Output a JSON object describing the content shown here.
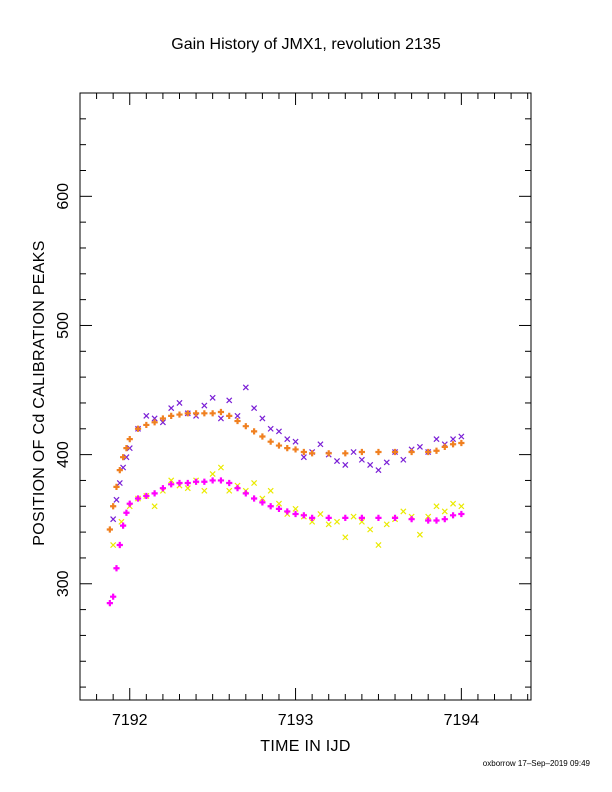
{
  "chart_data": {
    "type": "scatter",
    "title": "Gain History of JMX1, revolution 2135",
    "xlabel": "TIME IN IJD",
    "ylabel": "POSITION OF Cd CALIBRATION PEAKS",
    "xlim": [
      7191.7,
      7194.42
    ],
    "ylim": [
      210,
      680
    ],
    "x_ticks": [
      7192,
      7193,
      7194
    ],
    "x_tick_labels": [
      "7192",
      "7193",
      "7194"
    ],
    "y_ticks": [
      300,
      400,
      500,
      600
    ],
    "y_tick_labels": [
      "300",
      "400",
      "500",
      "600"
    ],
    "grid": false,
    "legend": "none",
    "series": [
      {
        "color": "#7a1fd6",
        "marker": "x",
        "x": [
          7191.9,
          7191.92,
          7191.94,
          7191.96,
          7191.98,
          7192.0,
          7192.05,
          7192.1,
          7192.15,
          7192.2,
          7192.25,
          7192.3,
          7192.35,
          7192.4,
          7192.45,
          7192.5,
          7192.55,
          7192.6,
          7192.65,
          7192.7,
          7192.75,
          7192.8,
          7192.85,
          7192.9,
          7192.95,
          7193.0,
          7193.05,
          7193.1,
          7193.15,
          7193.2,
          7193.25,
          7193.3,
          7193.35,
          7193.4,
          7193.45,
          7193.5,
          7193.55,
          7193.6,
          7193.65,
          7193.7,
          7193.75,
          7193.8,
          7193.85,
          7193.9,
          7193.95,
          7194.0
        ],
        "y": [
          350,
          365,
          378,
          390,
          398,
          405,
          420,
          430,
          428,
          425,
          436,
          440,
          432,
          430,
          438,
          444,
          428,
          442,
          430,
          452,
          436,
          428,
          420,
          418,
          412,
          410,
          398,
          402,
          408,
          400,
          395,
          392,
          402,
          396,
          392,
          388,
          394,
          402,
          396,
          404,
          406,
          402,
          412,
          408,
          412,
          414
        ]
      },
      {
        "color": "#f08020",
        "marker": "+",
        "x": [
          7191.88,
          7191.9,
          7191.92,
          7191.94,
          7191.96,
          7191.98,
          7192.0,
          7192.05,
          7192.1,
          7192.15,
          7192.2,
          7192.25,
          7192.3,
          7192.35,
          7192.4,
          7192.45,
          7192.5,
          7192.55,
          7192.6,
          7192.65,
          7192.7,
          7192.75,
          7192.8,
          7192.85,
          7192.9,
          7192.95,
          7193.0,
          7193.05,
          7193.1,
          7193.2,
          7193.3,
          7193.4,
          7193.5,
          7193.6,
          7193.7,
          7193.8,
          7193.85,
          7193.9,
          7193.95,
          7194.0
        ],
        "y": [
          342,
          360,
          375,
          388,
          398,
          405,
          412,
          420,
          423,
          425,
          428,
          430,
          431,
          432,
          432,
          432,
          432,
          433,
          430,
          426,
          422,
          418,
          414,
          410,
          407,
          405,
          404,
          402,
          401,
          401,
          401,
          402,
          402,
          402,
          402,
          402,
          403,
          406,
          408,
          409
        ]
      },
      {
        "color": "#eaea00",
        "marker": "x",
        "x": [
          7191.9,
          7191.95,
          7192.0,
          7192.05,
          7192.1,
          7192.15,
          7192.2,
          7192.25,
          7192.3,
          7192.35,
          7192.4,
          7192.45,
          7192.5,
          7192.55,
          7192.6,
          7192.65,
          7192.7,
          7192.75,
          7192.8,
          7192.85,
          7192.9,
          7192.95,
          7193.0,
          7193.05,
          7193.1,
          7193.15,
          7193.2,
          7193.25,
          7193.3,
          7193.35,
          7193.4,
          7193.45,
          7193.5,
          7193.55,
          7193.6,
          7193.65,
          7193.7,
          7193.75,
          7193.8,
          7193.85,
          7193.9,
          7193.95,
          7194.0
        ],
        "y": [
          330,
          348,
          360,
          366,
          368,
          360,
          372,
          380,
          376,
          374,
          380,
          372,
          385,
          390,
          372,
          376,
          372,
          378,
          366,
          372,
          362,
          354,
          358,
          352,
          348,
          354,
          346,
          348,
          336,
          352,
          348,
          342,
          330,
          346,
          350,
          356,
          352,
          338,
          352,
          360,
          356,
          362,
          360
        ]
      },
      {
        "color": "#ff00ff",
        "marker": "+",
        "x": [
          7191.88,
          7191.9,
          7191.92,
          7191.94,
          7191.96,
          7191.98,
          7192.0,
          7192.05,
          7192.1,
          7192.15,
          7192.2,
          7192.25,
          7192.3,
          7192.35,
          7192.4,
          7192.45,
          7192.5,
          7192.55,
          7192.6,
          7192.65,
          7192.7,
          7192.75,
          7192.8,
          7192.85,
          7192.9,
          7192.95,
          7193.0,
          7193.05,
          7193.1,
          7193.2,
          7193.3,
          7193.4,
          7193.5,
          7193.6,
          7193.7,
          7193.8,
          7193.85,
          7193.9,
          7193.95,
          7194.0
        ],
        "y": [
          285,
          290,
          312,
          330,
          345,
          355,
          362,
          366,
          368,
          370,
          374,
          377,
          378,
          378,
          379,
          379,
          380,
          380,
          378,
          374,
          370,
          366,
          363,
          360,
          358,
          356,
          354,
          353,
          351,
          351,
          351,
          351,
          351,
          351,
          350,
          349,
          349,
          350,
          353,
          354
        ]
      }
    ]
  },
  "credit": "oxborrow 17–Sep–2019 09:49"
}
